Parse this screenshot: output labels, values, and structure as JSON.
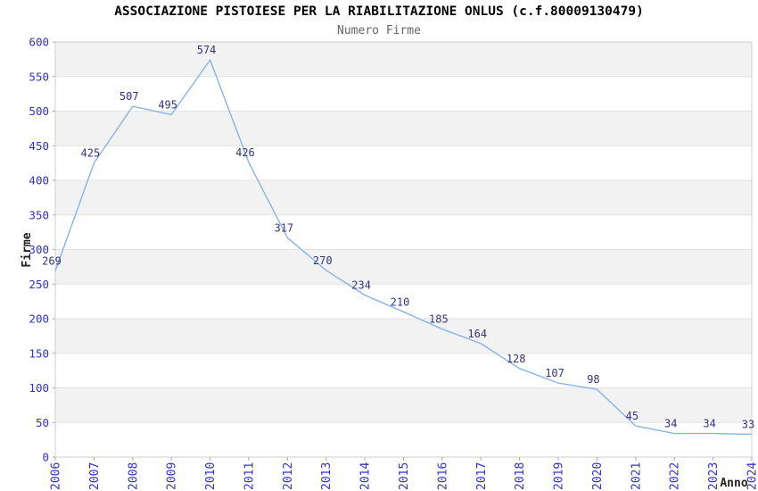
{
  "header": {
    "title": "ASSOCIAZIONE PISTOIESE PER LA RIABILITAZIONE ONLUS (c.f.80009130479)",
    "subtitle": "Numero Firme"
  },
  "chart_data": {
    "type": "line",
    "title": "ASSOCIAZIONE PISTOIESE PER LA RIABILITAZIONE ONLUS (c.f.80009130479)",
    "subtitle": "Numero Firme",
    "xlabel": "Anno",
    "ylabel": "Firme",
    "categories": [
      "2006",
      "2007",
      "2008",
      "2009",
      "2010",
      "2011",
      "2012",
      "2013",
      "2014",
      "2015",
      "2016",
      "2017",
      "2018",
      "2019",
      "2020",
      "2021",
      "2022",
      "2023",
      "2024"
    ],
    "values": [
      269,
      425,
      507,
      495,
      574,
      426,
      317,
      270,
      234,
      210,
      185,
      164,
      128,
      107,
      98,
      45,
      34,
      34,
      33
    ],
    "ylim": [
      0,
      600
    ],
    "ytick_step": 50,
    "grid": true,
    "legend": "none",
    "colors": {
      "line": "#86b4e8",
      "data_label": "#333380",
      "tick_label": "#3030d0",
      "axis_title": "#222222",
      "subtitle": "#666666",
      "band_light": "#ffffff",
      "band_dark": "#f2f2f2",
      "gridline": "#e3e3e3",
      "plot_border": "#cfcfcf",
      "tick_mark": "#aaaaaa"
    }
  }
}
